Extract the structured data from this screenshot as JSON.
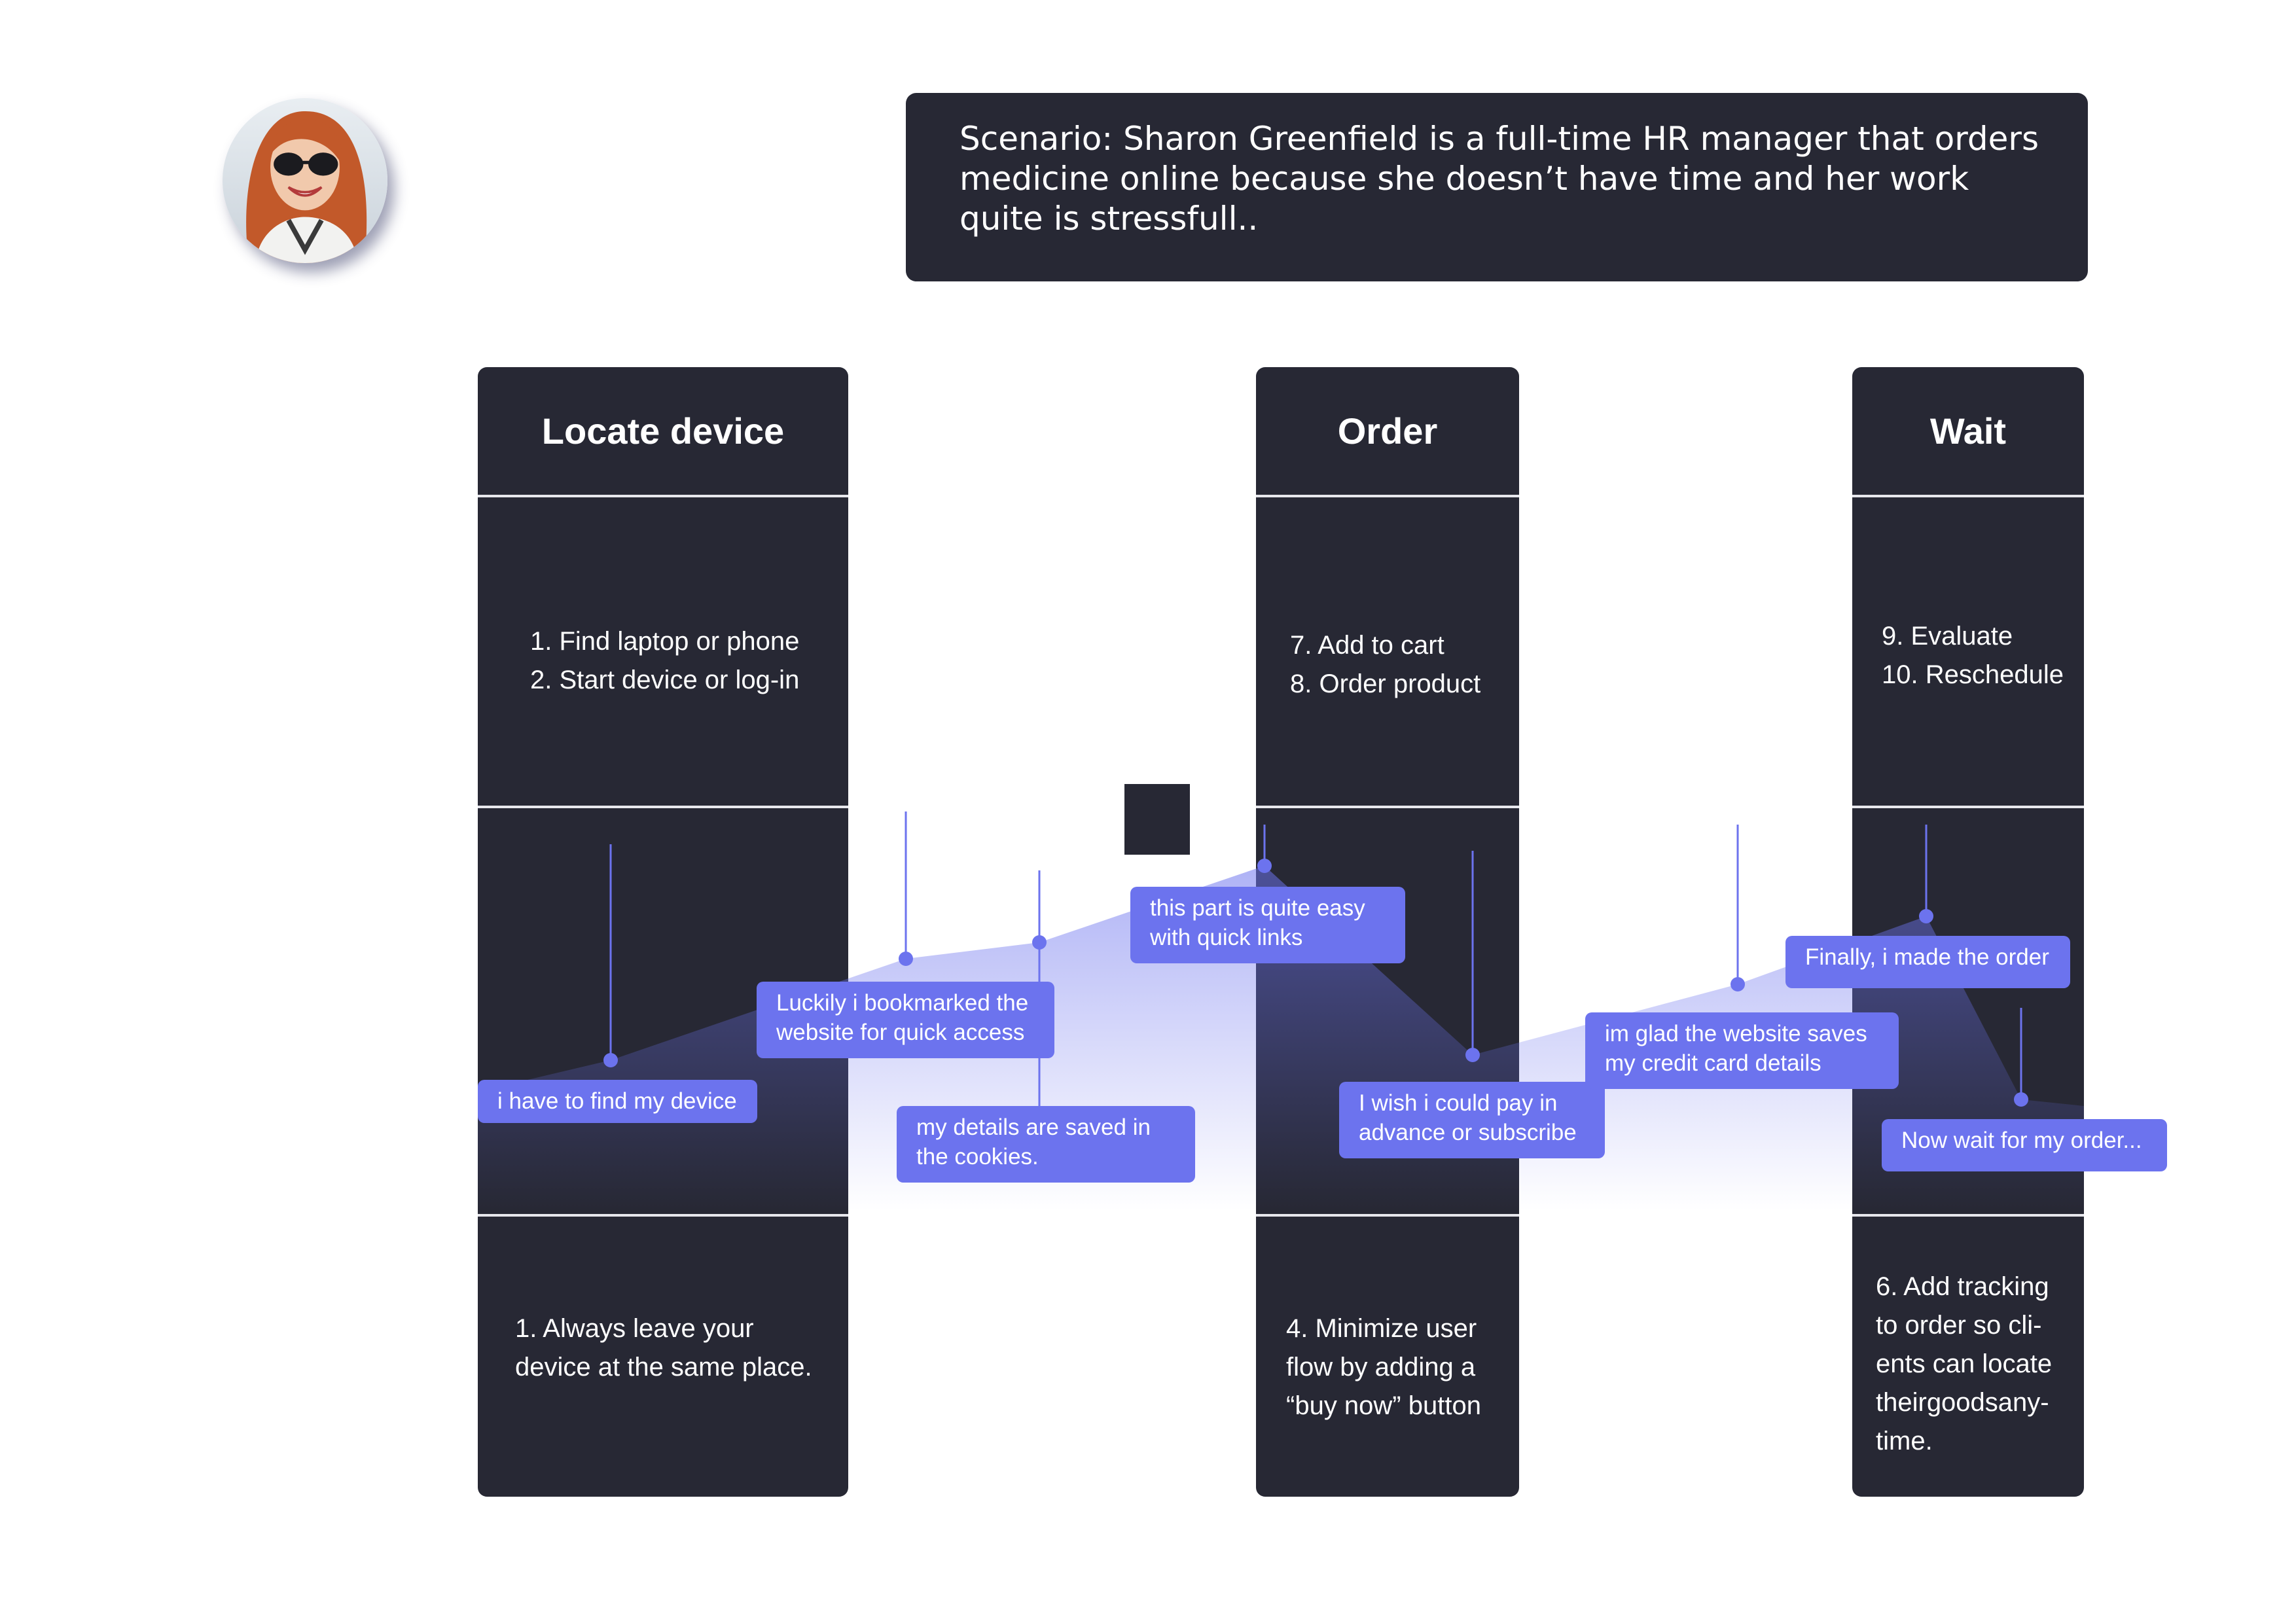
{
  "scenario": {
    "lines": [
      "Scenario: Sharon Greenfield is a full-time HR manager that orders",
      "medicine online because she doesn’t have time and her work",
      "quite is stressfull.."
    ]
  },
  "columns": [
    {
      "title": "Locate device",
      "actions": [
        "1. Find laptop or phone",
        "2. Start device or log-in"
      ],
      "opportunities": [
        "1. Always leave your",
        "device at the same place."
      ]
    },
    {
      "title": "Order",
      "actions": [
        "7. Add to cart",
        "8. Order product"
      ],
      "opportunities": [
        "4. Minimize user",
        "flow by adding a",
        "“buy now” button"
      ]
    },
    {
      "title": "Wait",
      "actions": [
        "9. Evaluate",
        "10. Reschedule"
      ],
      "opportunities": [
        "6. Add tracking",
        "to order so cli-",
        "ents can locate",
        "theirgoodsany-",
        "time."
      ]
    }
  ],
  "thoughts": [
    {
      "lines": [
        "i have to find my device"
      ]
    },
    {
      "lines": [
        "Luckily i bookmarked the",
        "website for quick access"
      ]
    },
    {
      "lines": [
        "my details are saved in",
        "the cookies."
      ]
    },
    {
      "lines": [
        "this part is quite easy",
        "with quick links"
      ]
    },
    {
      "lines": [
        "I wish i could pay in",
        "advance or subscribe"
      ]
    },
    {
      "lines": [
        "im glad the website saves",
        "my credit card details"
      ]
    },
    {
      "lines": [
        "Finally, i made the order"
      ]
    },
    {
      "lines": [
        "Now wait for my order..."
      ]
    }
  ],
  "colors": {
    "panel": "#272834",
    "accent": "#6c73ee",
    "divider": "#e7e7ec"
  }
}
